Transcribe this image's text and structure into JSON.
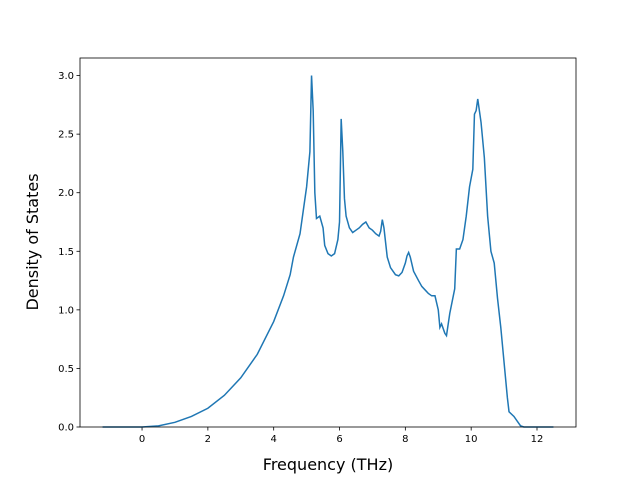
{
  "chart_data": {
    "type": "line",
    "xlabel": "Frequency (THz)",
    "ylabel": "Density of States",
    "color": "#1f77b4",
    "x": [
      -1.2,
      -0.5,
      0,
      0.5,
      1,
      1.5,
      2,
      2.5,
      3,
      3.5,
      4,
      4.3,
      4.5,
      4.6,
      4.8,
      4.9,
      5.0,
      5.1,
      5.15,
      5.2,
      5.25,
      5.3,
      5.4,
      5.5,
      5.55,
      5.65,
      5.75,
      5.85,
      5.95,
      6.0,
      6.05,
      6.1,
      6.15,
      6.2,
      6.3,
      6.4,
      6.5,
      6.6,
      6.7,
      6.8,
      6.9,
      7.0,
      7.1,
      7.2,
      7.25,
      7.3,
      7.35,
      7.45,
      7.55,
      7.7,
      7.8,
      7.9,
      8.0,
      8.05,
      8.1,
      8.15,
      8.25,
      8.4,
      8.5,
      8.6,
      8.7,
      8.8,
      8.9,
      9.0,
      9.05,
      9.1,
      9.2,
      9.25,
      9.35,
      9.5,
      9.55,
      9.65,
      9.75,
      9.85,
      9.95,
      10.05,
      10.1,
      10.15,
      10.2,
      10.3,
      10.4,
      10.5,
      10.6,
      10.7,
      10.8,
      10.9,
      11.0,
      11.1,
      11.15,
      11.3,
      11.4,
      11.5,
      11.6,
      12,
      12.5
    ],
    "values": [
      0,
      0,
      0,
      0.01,
      0.04,
      0.09,
      0.16,
      0.27,
      0.42,
      0.62,
      0.9,
      1.12,
      1.3,
      1.45,
      1.65,
      1.85,
      2.05,
      2.35,
      3.0,
      2.7,
      2.0,
      1.78,
      1.8,
      1.7,
      1.55,
      1.48,
      1.46,
      1.48,
      1.6,
      1.75,
      2.63,
      2.35,
      1.95,
      1.8,
      1.7,
      1.66,
      1.68,
      1.7,
      1.73,
      1.75,
      1.7,
      1.68,
      1.65,
      1.63,
      1.67,
      1.77,
      1.7,
      1.45,
      1.36,
      1.3,
      1.29,
      1.32,
      1.4,
      1.46,
      1.49,
      1.45,
      1.33,
      1.25,
      1.2,
      1.17,
      1.14,
      1.12,
      1.12,
      1.0,
      0.85,
      0.88,
      0.8,
      0.78,
      0.97,
      1.18,
      1.52,
      1.52,
      1.6,
      1.8,
      2.05,
      2.2,
      2.67,
      2.7,
      2.8,
      2.6,
      2.3,
      1.8,
      1.5,
      1.4,
      1.1,
      0.85,
      0.55,
      0.25,
      0.13,
      0.09,
      0.05,
      0.01,
      0,
      0,
      0
    ],
    "xlim": [
      -1.885,
      13.185
    ],
    "ylim": [
      0,
      3.15
    ],
    "xticks": [
      0,
      2,
      4,
      6,
      8,
      10,
      12
    ],
    "yticks": [
      {
        "value": 0,
        "label": "0.0"
      },
      0.5,
      {
        "value": 1,
        "label": "1.0"
      },
      1.5,
      {
        "value": 2,
        "label": "2.0"
      },
      2.5,
      {
        "value": 3,
        "label": "3.0"
      }
    ]
  }
}
